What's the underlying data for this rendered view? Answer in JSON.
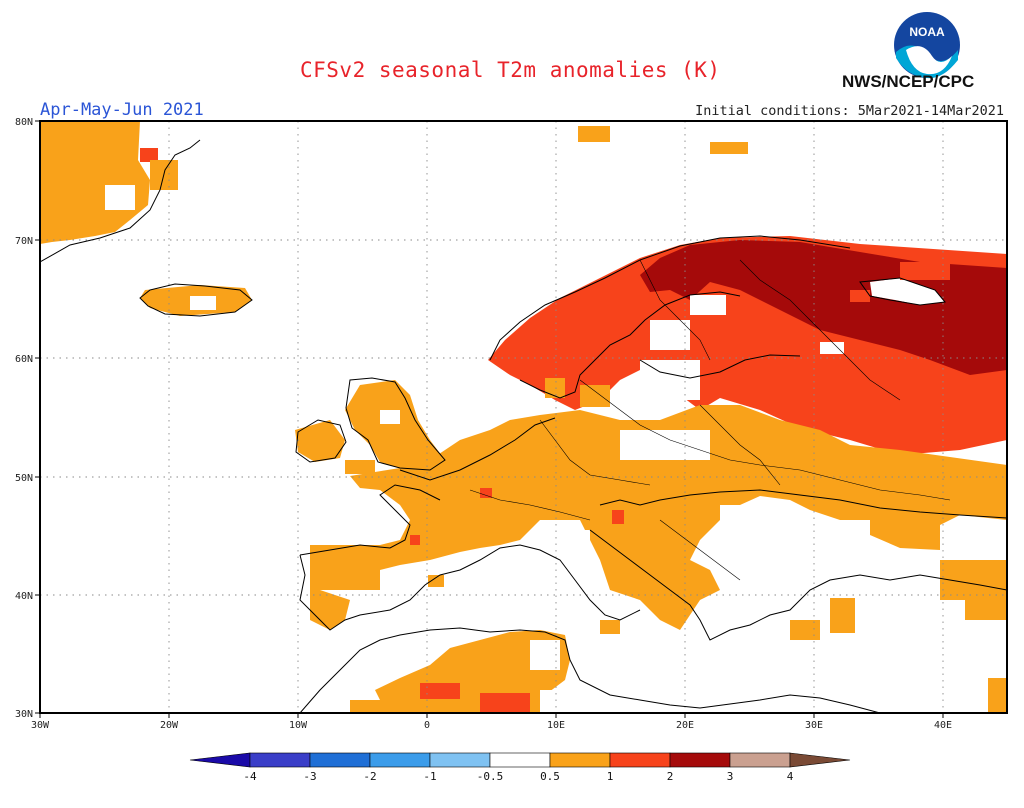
{
  "header": {
    "title": "CFSv2 seasonal T2m anomalies (K)",
    "period": "Apr-May-Jun 2021",
    "initial_conditions": "Initial conditions: 5Mar2021-14Mar2021",
    "agency": "NWS/NCEP/CPC",
    "logo_text": "NOAA"
  },
  "map": {
    "lon_range": [
      -30,
      45
    ],
    "lat_range": [
      30,
      80
    ],
    "lon_ticks": [
      "30W",
      "20W",
      "10W",
      "0",
      "10E",
      "20E",
      "30E",
      "40E"
    ],
    "lat_ticks": [
      "30N",
      "40N",
      "50N",
      "60N",
      "70N",
      "80N"
    ]
  },
  "legend": {
    "labels": [
      "-4",
      "-3",
      "-2",
      "-1",
      "-0.5",
      "0.5",
      "1",
      "2",
      "3",
      "4"
    ],
    "colors": [
      "#1a0aa8",
      "#3a3ec8",
      "#1f6fd6",
      "#3b9cea",
      "#7fc2f2",
      "#ffffff",
      "#f9a21a",
      "#f7431b",
      "#a50a0a",
      "#caa090",
      "#7a4a35"
    ]
  }
}
